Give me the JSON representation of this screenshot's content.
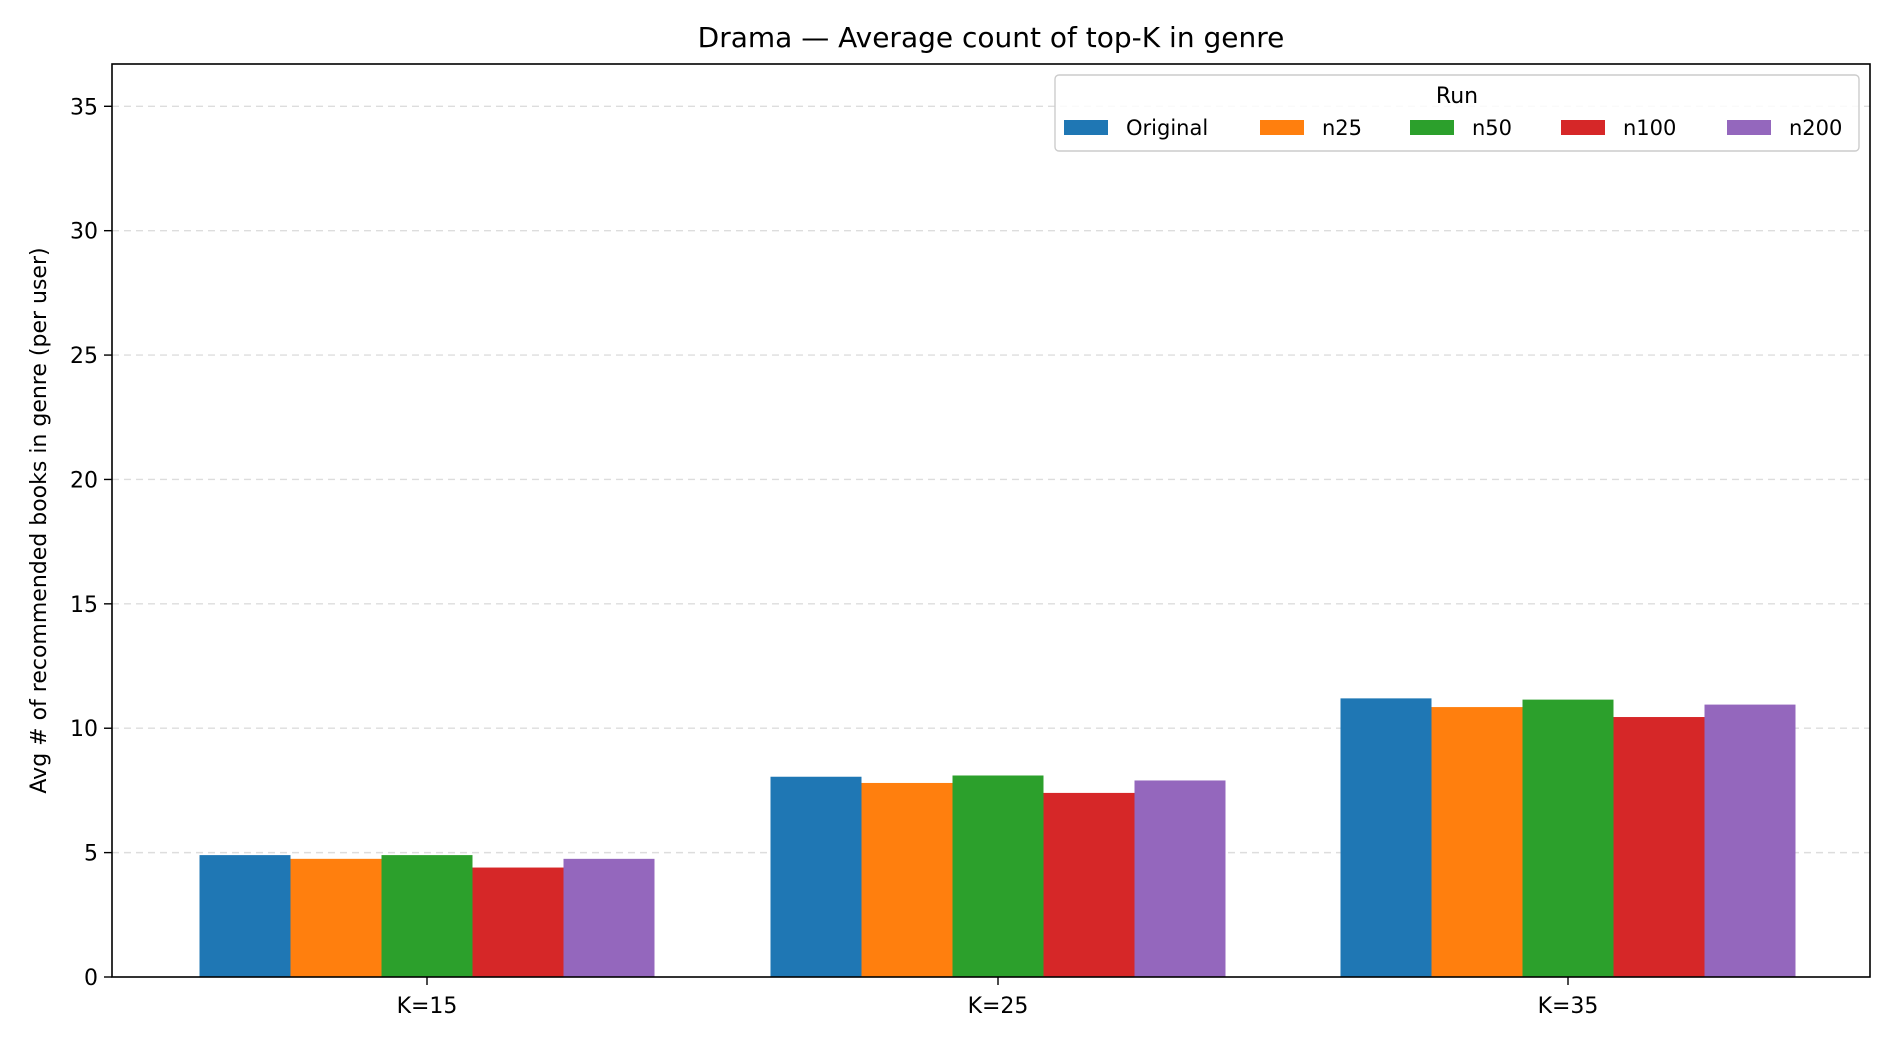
{
  "chart_data": {
    "type": "bar",
    "title": "Drama — Average count of top-K in genre",
    "xlabel": "",
    "ylabel": "Avg # of recommended books in genre (per user)",
    "categories": [
      "K=15",
      "K=25",
      "K=35"
    ],
    "series": [
      {
        "name": "Original",
        "color": "#1f77b4",
        "values": [
          4.9,
          8.05,
          11.2
        ]
      },
      {
        "name": "n25",
        "color": "#ff7f0e",
        "values": [
          4.75,
          7.8,
          10.85
        ]
      },
      {
        "name": "n50",
        "color": "#2ca02c",
        "values": [
          4.9,
          8.1,
          11.15
        ]
      },
      {
        "name": "n100",
        "color": "#d62728",
        "values": [
          4.4,
          7.4,
          10.45
        ]
      },
      {
        "name": "n200",
        "color": "#9467bd",
        "values": [
          4.75,
          7.9,
          10.95
        ]
      }
    ],
    "ylim": [
      0,
      36.7
    ],
    "yticks": [
      0,
      5,
      10,
      15,
      20,
      25,
      30,
      35
    ],
    "grid": {
      "y": true,
      "style": "dashed"
    },
    "legend": {
      "title": "Run",
      "placement": "top-right",
      "columns": 5
    }
  }
}
